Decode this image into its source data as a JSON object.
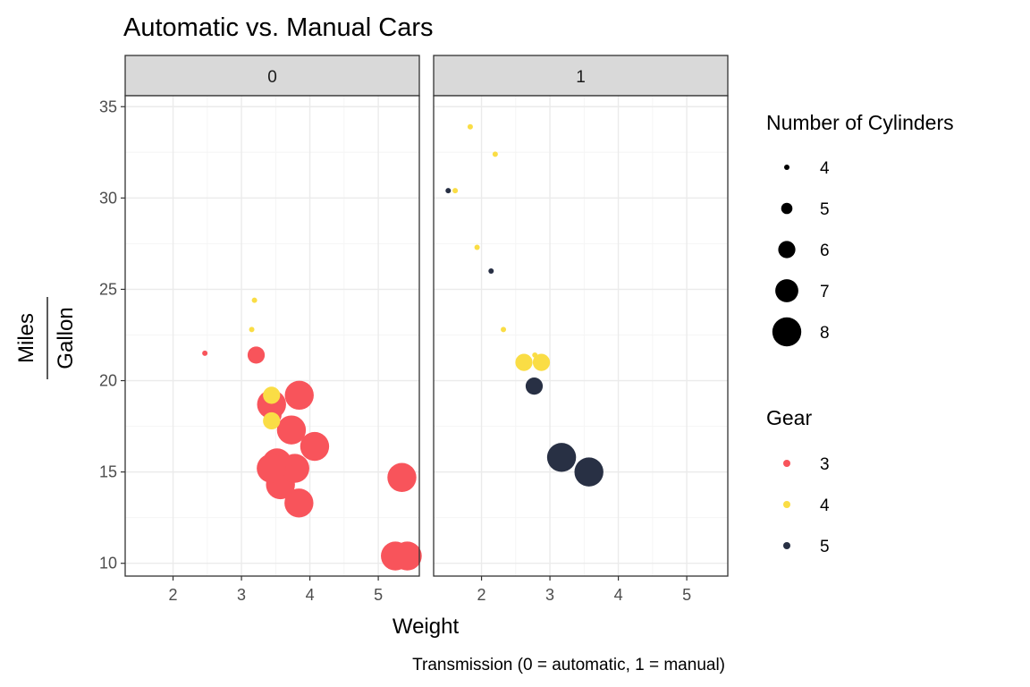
{
  "colors": {
    "gear_3": "#F8545B",
    "gear_4": "#FADD45",
    "gear_5": "#283044",
    "grid_major": "#EBEBEB",
    "grid_minor": "#F5F5F5",
    "strip_fill": "#D9D9D9",
    "panel_border": "#333333"
  },
  "chart_data": {
    "type": "scatter",
    "title": "Automatic vs. Manual Cars",
    "xlabel": "Weight",
    "ylabel_numerator": "Miles",
    "ylabel_denominator": "Gallon",
    "caption": "Transmission (0 = automatic, 1 = manual)",
    "xlim": [
      1.3,
      5.6
    ],
    "ylim": [
      9.3,
      35.6
    ],
    "x_ticks": [
      2,
      3,
      4,
      5
    ],
    "y_ticks": [
      10,
      15,
      20,
      25,
      30,
      35
    ],
    "grid": true,
    "facets": [
      {
        "label": "0",
        "points": [
          {
            "x": 3.215,
            "y": 21.4,
            "gear": 3,
            "cyl": 6
          },
          {
            "x": 3.44,
            "y": 18.7,
            "gear": 3,
            "cyl": 8
          },
          {
            "x": 3.46,
            "y": 18.1,
            "gear": 3,
            "cyl": 6
          },
          {
            "x": 3.57,
            "y": 14.3,
            "gear": 3,
            "cyl": 8
          },
          {
            "x": 3.19,
            "y": 24.4,
            "gear": 4,
            "cyl": 4
          },
          {
            "x": 3.15,
            "y": 22.8,
            "gear": 4,
            "cyl": 4
          },
          {
            "x": 3.44,
            "y": 19.2,
            "gear": 4,
            "cyl": 6
          },
          {
            "x": 3.44,
            "y": 17.8,
            "gear": 4,
            "cyl": 6
          },
          {
            "x": 4.07,
            "y": 16.4,
            "gear": 3,
            "cyl": 8
          },
          {
            "x": 3.73,
            "y": 17.3,
            "gear": 3,
            "cyl": 8
          },
          {
            "x": 3.78,
            "y": 15.2,
            "gear": 3,
            "cyl": 8
          },
          {
            "x": 5.25,
            "y": 10.4,
            "gear": 3,
            "cyl": 8
          },
          {
            "x": 5.424,
            "y": 10.4,
            "gear": 3,
            "cyl": 8
          },
          {
            "x": 5.345,
            "y": 14.7,
            "gear": 3,
            "cyl": 8
          },
          {
            "x": 2.465,
            "y": 21.5,
            "gear": 3,
            "cyl": 4
          },
          {
            "x": 3.52,
            "y": 15.5,
            "gear": 3,
            "cyl": 8
          },
          {
            "x": 3.435,
            "y": 15.2,
            "gear": 3,
            "cyl": 8
          },
          {
            "x": 3.84,
            "y": 13.3,
            "gear": 3,
            "cyl": 8
          },
          {
            "x": 3.845,
            "y": 19.2,
            "gear": 3,
            "cyl": 8
          }
        ]
      },
      {
        "label": "1",
        "points": [
          {
            "x": 2.62,
            "y": 21.0,
            "gear": 4,
            "cyl": 6
          },
          {
            "x": 2.875,
            "y": 21.0,
            "gear": 4,
            "cyl": 6
          },
          {
            "x": 2.32,
            "y": 22.8,
            "gear": 4,
            "cyl": 4
          },
          {
            "x": 2.2,
            "y": 32.4,
            "gear": 4,
            "cyl": 4
          },
          {
            "x": 1.615,
            "y": 30.4,
            "gear": 4,
            "cyl": 4
          },
          {
            "x": 1.835,
            "y": 33.9,
            "gear": 4,
            "cyl": 4
          },
          {
            "x": 1.935,
            "y": 27.3,
            "gear": 4,
            "cyl": 4
          },
          {
            "x": 2.14,
            "y": 26.0,
            "gear": 5,
            "cyl": 4
          },
          {
            "x": 1.513,
            "y": 30.4,
            "gear": 5,
            "cyl": 4
          },
          {
            "x": 3.17,
            "y": 15.8,
            "gear": 5,
            "cyl": 8
          },
          {
            "x": 2.77,
            "y": 19.7,
            "gear": 5,
            "cyl": 6
          },
          {
            "x": 3.57,
            "y": 15.0,
            "gear": 5,
            "cyl": 8
          },
          {
            "x": 2.78,
            "y": 21.4,
            "gear": 4,
            "cyl": 4
          }
        ]
      }
    ],
    "legend": {
      "placement": "right",
      "size": {
        "title": "Number of Cylinders",
        "entries": [
          "4",
          "5",
          "6",
          "7",
          "8"
        ],
        "values": [
          4,
          5,
          6,
          7,
          8
        ]
      },
      "color": {
        "title": "Gear",
        "entries": [
          "3",
          "4",
          "5"
        ],
        "values": [
          3,
          4,
          5
        ]
      }
    }
  }
}
